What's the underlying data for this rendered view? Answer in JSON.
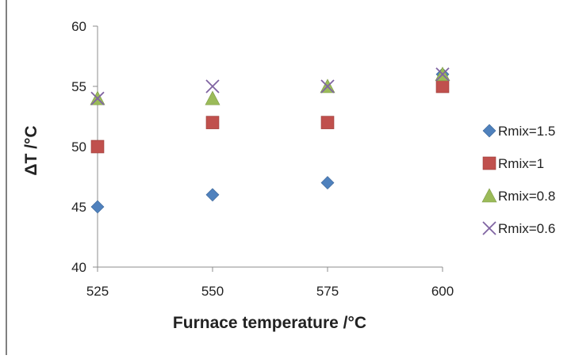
{
  "chart_data": {
    "type": "scatter",
    "title": "",
    "xlabel": "Furnace temperature /°C",
    "ylabel": "ΔT /°C",
    "xlim": [
      525,
      600
    ],
    "ylim": [
      40,
      60
    ],
    "xticks": [
      525,
      550,
      575,
      600
    ],
    "yticks": [
      40,
      45,
      50,
      55,
      60
    ],
    "grid": false,
    "legend_position": "right",
    "series": [
      {
        "name": "Rmix=1.5",
        "marker": "diamond",
        "color": "#4f81bd",
        "x": [
          525,
          550,
          575,
          600
        ],
        "y": [
          45,
          46,
          47,
          56
        ]
      },
      {
        "name": "Rmix=1",
        "marker": "square",
        "color": "#c0504d",
        "x": [
          525,
          550,
          575,
          600
        ],
        "y": [
          50,
          52,
          52,
          55
        ]
      },
      {
        "name": "Rmix=0.8",
        "marker": "triangle",
        "color": "#9bbb59",
        "x": [
          525,
          550,
          575,
          600
        ],
        "y": [
          54,
          54,
          55,
          56
        ]
      },
      {
        "name": "Rmix=0.6",
        "marker": "x",
        "color": "#8064a2",
        "x": [
          525,
          550,
          575,
          600
        ],
        "y": [
          54,
          55,
          55,
          56
        ]
      }
    ]
  }
}
